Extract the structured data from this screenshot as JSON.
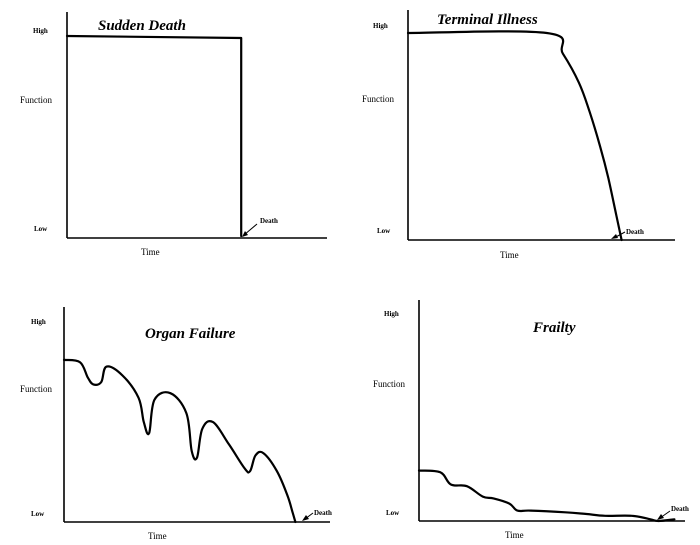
{
  "chart_data": [
    {
      "type": "line",
      "title": "Sudden Death",
      "xlabel": "Time",
      "ylabel": "Function",
      "y_high_label": "High",
      "y_low_label": "Low",
      "event_label": "Death",
      "xlim": [
        0,
        100
      ],
      "ylim": [
        0,
        100
      ],
      "series": [
        {
          "x": [
            0,
            67,
            67
          ],
          "y": [
            100,
            99,
            1
          ]
        }
      ],
      "event_x": 67
    },
    {
      "type": "line",
      "title": "Terminal Illness",
      "xlabel": "Time",
      "ylabel": "Function",
      "y_high_label": "High",
      "y_low_label": "Low",
      "event_label": "Death",
      "xlim": [
        0,
        100
      ],
      "ylim": [
        0,
        100
      ],
      "series": [
        {
          "x": [
            0,
            52,
            58,
            64,
            68,
            72,
            75,
            78,
            80
          ],
          "y": [
            100,
            100,
            90,
            76,
            62,
            45,
            30,
            12,
            0
          ]
        }
      ],
      "event_x": 80
    },
    {
      "type": "line",
      "title": "Organ Failure",
      "xlabel": "Time",
      "ylabel": "Function",
      "y_high_label": "High",
      "y_low_label": "Low",
      "event_label": "Death",
      "xlim": [
        0,
        100
      ],
      "ylim": [
        0,
        100
      ],
      "series": [
        {
          "x": [
            0,
            6,
            9,
            11,
            14,
            16,
            22,
            28,
            30,
            32,
            34,
            40,
            46,
            48,
            50,
            52,
            56,
            62,
            68,
            70,
            72,
            75,
            80,
            84,
            86,
            87
          ],
          "y": [
            73,
            72,
            65,
            62,
            63,
            70,
            66,
            56,
            45,
            40,
            55,
            58,
            49,
            32,
            29,
            42,
            45,
            35,
            24,
            23,
            30,
            31,
            23,
            12,
            4,
            0
          ]
        }
      ],
      "event_x": 87
    },
    {
      "type": "line",
      "title": "Frailty",
      "xlabel": "Time",
      "ylabel": "Function",
      "y_high_label": "High",
      "y_low_label": "Low",
      "event_label": "Death",
      "xlim": [
        0,
        100
      ],
      "ylim": [
        0,
        100
      ],
      "series": [
        {
          "x": [
            0,
            8,
            12,
            18,
            24,
            28,
            34,
            37,
            42,
            55,
            63,
            70,
            80,
            87,
            90,
            96
          ],
          "y": [
            29,
            28,
            21,
            20,
            14,
            13,
            10,
            6,
            6,
            5,
            4,
            3,
            3,
            1,
            0,
            1
          ]
        }
      ],
      "event_x": 90
    }
  ]
}
